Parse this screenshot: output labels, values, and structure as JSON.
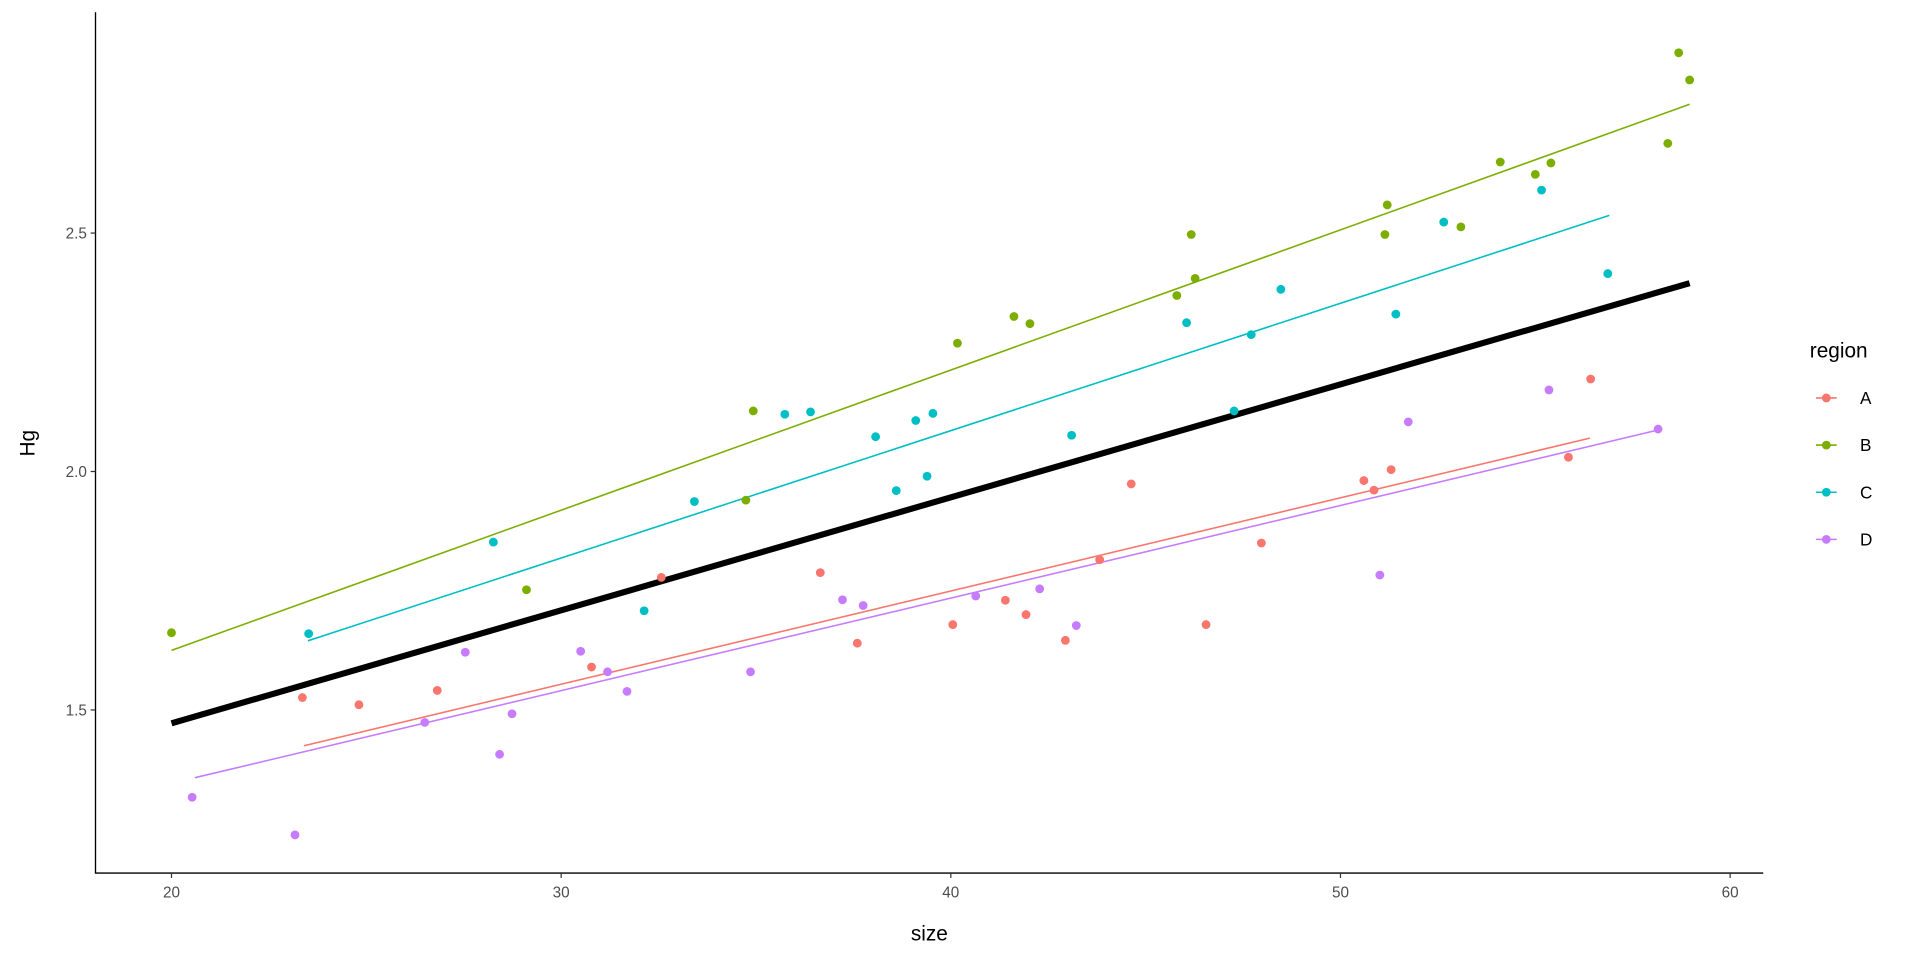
{
  "chart_data": {
    "type": "scatter",
    "title": "",
    "xlabel": "size",
    "ylabel": "Hg",
    "xlim": [
      18.05,
      60.85
    ],
    "ylim": [
      1.158,
      2.963
    ],
    "xticks": [
      20,
      30,
      40,
      50,
      60
    ],
    "yticks": [
      1.5,
      2.0,
      2.5
    ],
    "ytick_labels": [
      "1.5",
      "2.0",
      "2.5"
    ],
    "grid": false,
    "legend": {
      "title": "region",
      "position": "right"
    },
    "series": [
      {
        "name": "A",
        "color": "#F8766D",
        "x": [
          23.36,
          24.81,
          26.82,
          30.78,
          32.57,
          36.65,
          37.6,
          40.05,
          41.4,
          41.93,
          42.94,
          43.82,
          44.63,
          46.55,
          47.97,
          50.6,
          50.86,
          51.3,
          55.85,
          56.42
        ],
        "y": [
          1.526,
          1.511,
          1.541,
          1.59,
          1.778,
          1.788,
          1.64,
          1.679,
          1.73,
          1.7,
          1.646,
          1.815,
          1.974,
          1.679,
          1.85,
          1.981,
          1.961,
          2.004,
          2.03,
          2.194
        ],
        "fit": {
          "x": [
            23.4,
            56.4
          ],
          "y": [
            1.425,
            2.07
          ]
        }
      },
      {
        "name": "B",
        "color": "#7CAE00",
        "x": [
          20.0,
          29.11,
          34.74,
          34.93,
          40.17,
          41.62,
          42.03,
          45.8,
          46.17,
          46.27,
          51.14,
          51.2,
          53.09,
          54.1,
          55.0,
          55.4,
          58.4,
          58.68,
          58.96
        ],
        "y": [
          1.662,
          1.752,
          1.94,
          2.127,
          2.269,
          2.325,
          2.31,
          2.369,
          2.497,
          2.405,
          2.497,
          2.559,
          2.513,
          2.649,
          2.623,
          2.647,
          2.688,
          2.878,
          2.821
        ],
        "fit": {
          "x": [
            20.0,
            58.96
          ],
          "y": [
            1.625,
            2.77
          ]
        }
      },
      {
        "name": "C",
        "color": "#00BFC4",
        "x": [
          23.52,
          28.26,
          32.13,
          33.42,
          35.74,
          36.4,
          38.07,
          38.6,
          39.1,
          39.39,
          39.54,
          43.1,
          46.05,
          47.27,
          47.71,
          48.47,
          51.42,
          52.65,
          55.16,
          56.86
        ],
        "y": [
          1.66,
          1.852,
          1.708,
          1.937,
          2.12,
          2.125,
          2.073,
          1.96,
          2.107,
          1.99,
          2.122,
          2.076,
          2.312,
          2.127,
          2.287,
          2.382,
          2.33,
          2.523,
          2.59,
          2.415
        ],
        "fit": {
          "x": [
            23.5,
            56.9
          ],
          "y": [
            1.645,
            2.537
          ]
        }
      },
      {
        "name": "D",
        "color": "#C77CFF",
        "x": [
          20.53,
          23.17,
          26.5,
          27.54,
          28.42,
          28.74,
          30.5,
          31.19,
          31.69,
          34.86,
          37.22,
          37.75,
          40.64,
          42.28,
          43.22,
          51.01,
          51.74,
          55.35,
          58.15
        ],
        "y": [
          1.317,
          1.238,
          1.474,
          1.621,
          1.407,
          1.492,
          1.623,
          1.58,
          1.539,
          1.58,
          1.731,
          1.719,
          1.739,
          1.754,
          1.677,
          1.783,
          2.104,
          2.171,
          2.089
        ],
        "fit": {
          "x": [
            20.6,
            58.1
          ],
          "y": [
            1.358,
            2.086
          ]
        }
      }
    ],
    "overall_fit": {
      "color": "#000000",
      "x": [
        20.0,
        58.96
      ],
      "y": [
        1.472,
        2.395
      ]
    }
  }
}
